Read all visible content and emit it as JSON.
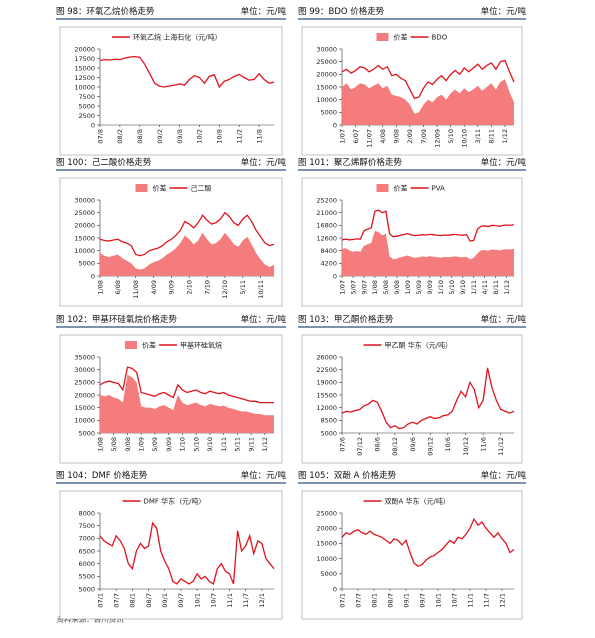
{
  "chart_data": [
    {
      "type": "line",
      "title": "图 98：环氧乙烷价格走势",
      "unit": "单位：元/吨",
      "categories": [
        "07/8",
        null,
        null,
        null,
        "08/2",
        null,
        null,
        null,
        "08/8",
        null,
        null,
        null,
        "09/2",
        null,
        null,
        null,
        "09/8",
        null,
        null,
        null,
        "10/2",
        null,
        null,
        null,
        "10/8",
        null,
        null,
        null,
        "11/2",
        null,
        null,
        null,
        "11/8",
        null,
        null,
        null
      ],
      "series": [
        {
          "name": "环氧乙烷 上海石化（元/吨）",
          "color": "#e0141e",
          "style": "line",
          "values": [
            17000,
            17200,
            17100,
            17300,
            17200,
            17600,
            17900,
            18000,
            17800,
            16000,
            13500,
            11000,
            10200,
            10000,
            10300,
            10500,
            10800,
            10500,
            12000,
            13000,
            12500,
            11000,
            12800,
            13200,
            10000,
            11500,
            12000,
            12800,
            13300,
            12500,
            11800,
            12000,
            13500,
            12000,
            11000,
            11300
          ]
        }
      ],
      "ylim": [
        0,
        20000
      ],
      "yticks": [
        0,
        2500,
        5000,
        7500,
        10000,
        12500,
        15000,
        17500,
        20000
      ],
      "grid": false
    },
    {
      "type": "line",
      "title": "图 99：BDO 价格走势",
      "unit": "单位：元/吨",
      "categories": [
        "1/07",
        null,
        null,
        "6/07",
        null,
        null,
        "11/07",
        null,
        null,
        "4/08",
        null,
        null,
        "9/08",
        null,
        null,
        "2/09",
        null,
        null,
        "7/09",
        null,
        null,
        "12/09",
        null,
        null,
        "5/10",
        null,
        null,
        "10/10",
        null,
        null,
        "3/11",
        null,
        null,
        "8/11",
        null,
        null,
        "1/12",
        null,
        null
      ],
      "series": [
        {
          "name": "价差",
          "color": "#f47c7c",
          "style": "area",
          "values": [
            15000,
            16500,
            14000,
            15000,
            16500,
            16000,
            14500,
            15500,
            16500,
            14500,
            15500,
            12000,
            11500,
            11000,
            10000,
            8000,
            4500,
            5000,
            8000,
            10000,
            9000,
            11000,
            12000,
            10000,
            12500,
            14000,
            12500,
            14500,
            13000,
            14000,
            15500,
            13500,
            15000,
            16500,
            14000,
            17000,
            18000,
            13000,
            9000
          ]
        },
        {
          "name": "BDO",
          "color": "#e0141e",
          "style": "line",
          "values": [
            21000,
            22000,
            20500,
            21500,
            23000,
            22500,
            21000,
            22000,
            23500,
            22000,
            23000,
            19500,
            20000,
            18500,
            17500,
            14000,
            10500,
            11000,
            14500,
            17000,
            16000,
            18000,
            19500,
            17500,
            20000,
            21500,
            20000,
            22500,
            21000,
            22500,
            24000,
            22000,
            23500,
            24500,
            22000,
            25000,
            25500,
            21000,
            17000
          ]
        }
      ],
      "ylim": [
        0,
        30000
      ],
      "yticks": [
        0,
        5000,
        10000,
        15000,
        20000,
        25000,
        30000
      ],
      "grid": false
    },
    {
      "type": "line",
      "title": "图 100：己二酸价格走势",
      "unit": "单位：元/吨",
      "categories": [
        "1/08",
        null,
        null,
        null,
        "6/08",
        null,
        null,
        null,
        "11/08",
        null,
        null,
        null,
        "4/09",
        null,
        null,
        null,
        "9/09",
        null,
        null,
        null,
        "2/10",
        null,
        null,
        null,
        "7/10",
        null,
        null,
        null,
        "12/10",
        null,
        null,
        null,
        "5/11",
        null,
        null,
        null,
        "10/11",
        null,
        null,
        null
      ],
      "series": [
        {
          "name": "价差",
          "color": "#f47c7c",
          "style": "area",
          "values": [
            9000,
            8000,
            7500,
            8000,
            8500,
            7000,
            6000,
            5000,
            3000,
            2500,
            3000,
            4500,
            5500,
            6000,
            7000,
            8500,
            9500,
            11000,
            13000,
            16000,
            14500,
            12500,
            14000,
            17000,
            14500,
            12500,
            13000,
            14500,
            17000,
            15000,
            12500,
            11500,
            14000,
            15500,
            12500,
            9000,
            6500,
            4500,
            3500,
            4500
          ]
        },
        {
          "name": "己二酸",
          "color": "#e0141e",
          "style": "line",
          "values": [
            14500,
            14000,
            13800,
            14200,
            14500,
            13500,
            13000,
            12000,
            8500,
            8000,
            8500,
            10000,
            10500,
            11000,
            12000,
            13500,
            14500,
            16000,
            18000,
            21500,
            20500,
            19000,
            21000,
            24000,
            22000,
            20500,
            21000,
            22500,
            25000,
            23500,
            21000,
            20000,
            22500,
            24000,
            21500,
            18000,
            15500,
            13000,
            12000,
            12500
          ]
        }
      ],
      "ylim": [
        0,
        30000
      ],
      "yticks": [
        0,
        5000,
        10000,
        15000,
        20000,
        25000,
        30000
      ],
      "grid": false
    },
    {
      "type": "line",
      "title": "图 101：聚乙烯醇价格走势",
      "unit": "单位：元/吨",
      "categories": [
        "1/07",
        null,
        null,
        "5/07",
        null,
        null,
        "9/07",
        null,
        null,
        "1/08",
        null,
        null,
        "5/08",
        null,
        null,
        "9/08",
        null,
        null,
        "1/09",
        null,
        null,
        "5/09",
        null,
        null,
        "9/09",
        null,
        null,
        "1/10",
        null,
        null,
        "5/10",
        null,
        null,
        "9/10",
        null,
        null,
        "1/11",
        null,
        null,
        "4/11",
        null,
        null,
        "8/11",
        null,
        null,
        "1/12",
        null,
        null
      ],
      "series": [
        {
          "name": "价差",
          "color": "#f47c7c",
          "style": "area",
          "values": [
            9000,
            9200,
            8500,
            8000,
            8300,
            8000,
            10000,
            10500,
            11000,
            15000,
            14500,
            13500,
            14000,
            6500,
            5500,
            5800,
            6200,
            6500,
            6800,
            6300,
            6000,
            6200,
            6500,
            6300,
            6600,
            6400,
            6200,
            6100,
            6300,
            6200,
            6400,
            6500,
            6300,
            6200,
            6400,
            5500,
            6000,
            7500,
            8500,
            8600,
            8400,
            8800,
            8700,
            8500,
            8800,
            8900,
            8800,
            9000
          ]
        },
        {
          "name": "PVA",
          "color": "#e0141e",
          "style": "line",
          "values": [
            12000,
            12200,
            12000,
            12100,
            12300,
            12200,
            15000,
            15500,
            16000,
            21500,
            21800,
            21000,
            21500,
            14000,
            13000,
            13200,
            13500,
            13800,
            14000,
            13600,
            13400,
            13500,
            13700,
            13600,
            13800,
            13700,
            13500,
            13400,
            13600,
            13500,
            13700,
            13800,
            13600,
            13500,
            13700,
            11600,
            11800,
            15500,
            16500,
            16600,
            16400,
            16800,
            16700,
            16500,
            16800,
            16900,
            16800,
            17000
          ]
        }
      ],
      "ylim": [
        0,
        25200
      ],
      "yticks": [
        0,
        4200,
        8400,
        12600,
        16800,
        21000,
        25200
      ],
      "grid": false
    },
    {
      "type": "line",
      "title": "图 102：甲基环硅氧烷价格走势",
      "unit": "单位：元/吨",
      "categories": [
        "1/08",
        null,
        null,
        "5/08",
        null,
        null,
        "9/08",
        null,
        null,
        "1/09",
        null,
        null,
        "5/09",
        null,
        null,
        "9/09",
        null,
        null,
        "1/10",
        null,
        null,
        "5/10",
        null,
        null,
        "9/10",
        null,
        null,
        "1/11",
        null,
        null,
        "5/11",
        null,
        null,
        "9/11",
        null,
        null,
        "1/12",
        null,
        null
      ],
      "series": [
        {
          "name": "价差",
          "color": "#f47c7c",
          "style": "area",
          "values": [
            20000,
            19500,
            20000,
            19000,
            18500,
            17000,
            28000,
            27000,
            25000,
            15500,
            15000,
            15000,
            14500,
            15500,
            16000,
            15000,
            14000,
            20000,
            17000,
            16000,
            16500,
            17000,
            16000,
            15500,
            16500,
            16000,
            15500,
            15800,
            15000,
            14500,
            14000,
            13500,
            13500,
            13000,
            12500,
            12500,
            12000,
            12000,
            12000
          ]
        },
        {
          "name": "甲基环硅氧烷",
          "color": "#e0141e",
          "style": "line",
          "values": [
            24000,
            25000,
            25500,
            25000,
            24500,
            22000,
            31000,
            30500,
            29000,
            21000,
            20500,
            20000,
            19500,
            20500,
            21000,
            20000,
            19000,
            24000,
            22000,
            21000,
            21500,
            22000,
            21000,
            20500,
            21500,
            21000,
            20500,
            21000,
            20000,
            19500,
            19000,
            18500,
            18000,
            17500,
            17500,
            17000,
            17000,
            17000,
            17000
          ]
        }
      ],
      "ylim": [
        5000,
        35000
      ],
      "yticks": [
        5000,
        10000,
        15000,
        20000,
        25000,
        30000,
        35000
      ],
      "grid": false
    },
    {
      "type": "line",
      "title": "图 103：甲乙酮价格走势",
      "unit": "单位：元/吨",
      "categories": [
        "07/6",
        null,
        null,
        null,
        "07/12",
        null,
        null,
        null,
        "08/6",
        null,
        null,
        null,
        "08/12",
        null,
        null,
        null,
        "09/6",
        null,
        null,
        null,
        "09/12",
        null,
        null,
        null,
        "10/6",
        null,
        null,
        null,
        "10/12",
        null,
        null,
        null,
        "11/6",
        null,
        null,
        null,
        "11/12",
        null,
        null,
        null
      ],
      "series": [
        {
          "name": "甲乙酮 华东（元/吨）",
          "color": "#e0141e",
          "style": "line",
          "values": [
            10500,
            11000,
            10800,
            11200,
            11500,
            12500,
            13000,
            14000,
            13500,
            11000,
            8000,
            6500,
            7000,
            6200,
            6500,
            7500,
            8000,
            7500,
            8500,
            9000,
            9500,
            9000,
            9200,
            9800,
            10000,
            11000,
            14000,
            16500,
            15000,
            19000,
            17000,
            12000,
            14000,
            23000,
            17500,
            14000,
            11500,
            11000,
            10500,
            11000
          ]
        }
      ],
      "ylim": [
        5000,
        26000
      ],
      "yticks": [
        5000,
        8500,
        12000,
        15500,
        19000,
        22500,
        26000
      ],
      "grid": false
    },
    {
      "type": "line",
      "title": "图 104：DMF 价格走势",
      "unit": "单位：元/吨",
      "categories": [
        "07/1",
        null,
        null,
        null,
        "07/7",
        null,
        null,
        null,
        "08/1",
        null,
        null,
        null,
        "08/7",
        null,
        null,
        null,
        "09/1",
        null,
        null,
        null,
        "09/7",
        null,
        null,
        null,
        "10/1",
        null,
        null,
        null,
        "10/7",
        null,
        null,
        null,
        "11/1",
        null,
        null,
        null,
        "11/7",
        null,
        null,
        null,
        "12/1",
        null,
        null,
        null
      ],
      "series": [
        {
          "name": "DMF 华东（元/吨）",
          "color": "#e0141e",
          "style": "line",
          "values": [
            7100,
            6900,
            6800,
            6700,
            7100,
            6900,
            6600,
            6000,
            5800,
            6500,
            6800,
            6600,
            6700,
            7600,
            7400,
            6500,
            6100,
            5800,
            5300,
            5200,
            5400,
            5300,
            5200,
            5300,
            5600,
            5400,
            5500,
            5300,
            5200,
            5800,
            6000,
            5700,
            5600,
            5200,
            7300,
            6500,
            6700,
            7100,
            6400,
            6900,
            6800,
            6200,
            6000,
            5800
          ]
        }
      ],
      "ylim": [
        5000,
        8000
      ],
      "yticks": [
        5000,
        5500,
        6000,
        6500,
        7000,
        7500,
        8000
      ],
      "grid": false
    },
    {
      "type": "line",
      "title": "图 105：双酚 A 价格走势",
      "unit": "单位：元/吨",
      "categories": [
        "07/1",
        null,
        null,
        null,
        "07/7",
        null,
        null,
        null,
        "08/1",
        null,
        null,
        null,
        "08/7",
        null,
        null,
        null,
        "09/1",
        null,
        null,
        null,
        "09/7",
        null,
        null,
        null,
        "10/1",
        null,
        null,
        null,
        "10/7",
        null,
        null,
        null,
        "11/1",
        null,
        null,
        null,
        "11/7",
        null,
        null,
        null,
        "12/1",
        null,
        null,
        null
      ],
      "series": [
        {
          "name": "双酚A 华东（元/吨）",
          "color": "#e0141e",
          "style": "line",
          "values": [
            17000,
            18500,
            18000,
            19000,
            19500,
            18500,
            18000,
            19000,
            18000,
            17500,
            17000,
            16000,
            15000,
            16500,
            16000,
            14500,
            16000,
            12000,
            8500,
            7500,
            8000,
            9500,
            10500,
            11000,
            12000,
            13000,
            14500,
            16000,
            15000,
            17000,
            16500,
            18000,
            20000,
            23000,
            21000,
            22000,
            20000,
            18500,
            17000,
            18500,
            16500,
            15000,
            12000,
            13000
          ]
        }
      ],
      "ylim": [
        0,
        25000
      ],
      "yticks": [
        0,
        5000,
        10000,
        15000,
        20000,
        25000
      ],
      "grid": false
    }
  ],
  "source": "资料来源：百川资讯"
}
